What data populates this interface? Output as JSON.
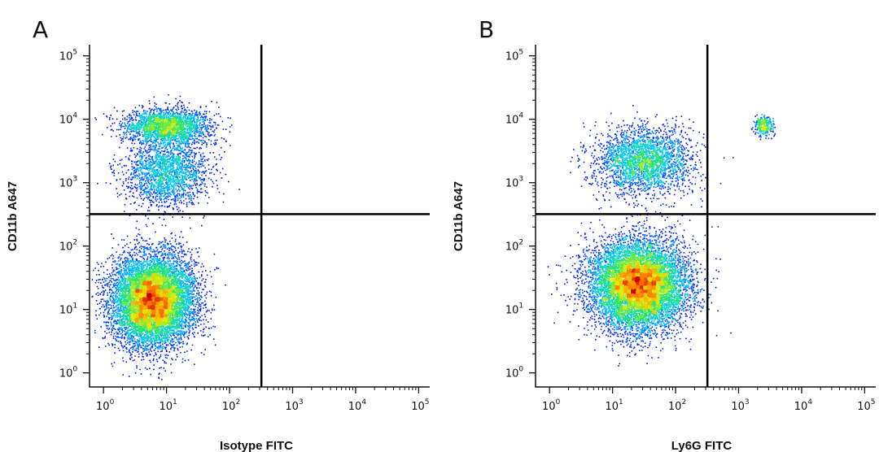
{
  "chart_data": [
    {
      "type": "scatter",
      "panel_label": "A",
      "xlabel": "Isotype FITC",
      "ylabel": "CD11b A647",
      "x_scale": "log",
      "y_scale": "log",
      "x_ticks": [
        {
          "base": "10",
          "exp": "0",
          "value": 1
        },
        {
          "base": "10",
          "exp": "1",
          "value": 10
        },
        {
          "base": "10",
          "exp": "2",
          "value": 100
        },
        {
          "base": "10",
          "exp": "3",
          "value": 1000
        },
        {
          "base": "10",
          "exp": "4",
          "value": 10000
        },
        {
          "base": "10",
          "exp": "5",
          "value": 100000
        }
      ],
      "y_ticks": [
        {
          "base": "10",
          "exp": "0",
          "value": 1
        },
        {
          "base": "10",
          "exp": "1",
          "value": 10
        },
        {
          "base": "10",
          "exp": "2",
          "value": 100
        },
        {
          "base": "10",
          "exp": "3",
          "value": 1000
        },
        {
          "base": "10",
          "exp": "4",
          "value": 10000
        },
        {
          "base": "10",
          "exp": "5",
          "value": 100000
        }
      ],
      "xlim": [
        0.6,
        150000
      ],
      "ylim": [
        0.6,
        150000
      ],
      "quadrant_gate": {
        "x": 320,
        "y": 320
      },
      "populations": [
        {
          "center_x": 6,
          "center_y": 14,
          "spread_x": 0.33,
          "spread_y": 0.36,
          "count": 9000
        },
        {
          "center_x": 10,
          "center_y": 8000,
          "spread_x": 0.35,
          "spread_y": 0.14,
          "count": 2200
        },
        {
          "center_x": 10,
          "center_y": 1500,
          "spread_x": 0.33,
          "spread_y": 0.27,
          "count": 2000
        }
      ]
    },
    {
      "type": "scatter",
      "panel_label": "B",
      "xlabel": "Ly6G FITC",
      "ylabel": "CD11b A647",
      "x_scale": "log",
      "y_scale": "log",
      "x_ticks": [
        {
          "base": "10",
          "exp": "0",
          "value": 1
        },
        {
          "base": "10",
          "exp": "1",
          "value": 10
        },
        {
          "base": "10",
          "exp": "2",
          "value": 100
        },
        {
          "base": "10",
          "exp": "3",
          "value": 1000
        },
        {
          "base": "10",
          "exp": "4",
          "value": 10000
        },
        {
          "base": "10",
          "exp": "5",
          "value": 100000
        }
      ],
      "y_ticks": [
        {
          "base": "10",
          "exp": "0",
          "value": 1
        },
        {
          "base": "10",
          "exp": "1",
          "value": 10
        },
        {
          "base": "10",
          "exp": "2",
          "value": 100
        },
        {
          "base": "10",
          "exp": "3",
          "value": 1000
        },
        {
          "base": "10",
          "exp": "4",
          "value": 10000
        },
        {
          "base": "10",
          "exp": "5",
          "value": 100000
        }
      ],
      "xlim": [
        0.6,
        150000
      ],
      "ylim": [
        0.6,
        150000
      ],
      "quadrant_gate": {
        "x": 320,
        "y": 320
      },
      "populations": [
        {
          "center_x": 25,
          "center_y": 25,
          "spread_x": 0.38,
          "spread_y": 0.36,
          "count": 9000
        },
        {
          "center_x": 30,
          "center_y": 2200,
          "spread_x": 0.38,
          "spread_y": 0.27,
          "count": 2600
        },
        {
          "center_x": 2500,
          "center_y": 8000,
          "spread_x": 0.08,
          "spread_y": 0.08,
          "count": 300
        }
      ]
    }
  ]
}
